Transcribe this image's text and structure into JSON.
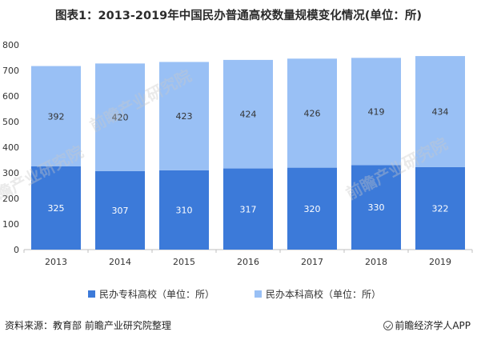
{
  "title": "图表1：2013-2019年中国民办普通高校数量规模变化情况(单位：所)",
  "footer": {
    "source": "资料来源：教育部 前瞻产业研究院整理",
    "brand": "前瞻经济学人APP"
  },
  "watermark_text": "前瞻产业研究院",
  "colors": {
    "series1": "#3c7ad9",
    "series2": "#99c0f5",
    "axis": "#bfbfbf",
    "label": "#ffffff",
    "label2": "#333333"
  },
  "chart_data": {
    "type": "bar",
    "stacked": true,
    "categories": [
      "2013",
      "2014",
      "2015",
      "2016",
      "2017",
      "2018",
      "2019"
    ],
    "series": [
      {
        "name": "民办专科高校（单位：所）",
        "values": [
          325,
          307,
          310,
          317,
          320,
          330,
          322
        ]
      },
      {
        "name": "民办本科高校（单位：所）",
        "values": [
          392,
          420,
          423,
          424,
          426,
          419,
          434
        ]
      }
    ],
    "ylim": [
      0,
      800
    ],
    "yticks": [
      0,
      100,
      200,
      300,
      400,
      500,
      600,
      700,
      800
    ],
    "title": "",
    "xlabel": "",
    "ylabel": "",
    "legend_position": "bottom",
    "grid": false
  }
}
